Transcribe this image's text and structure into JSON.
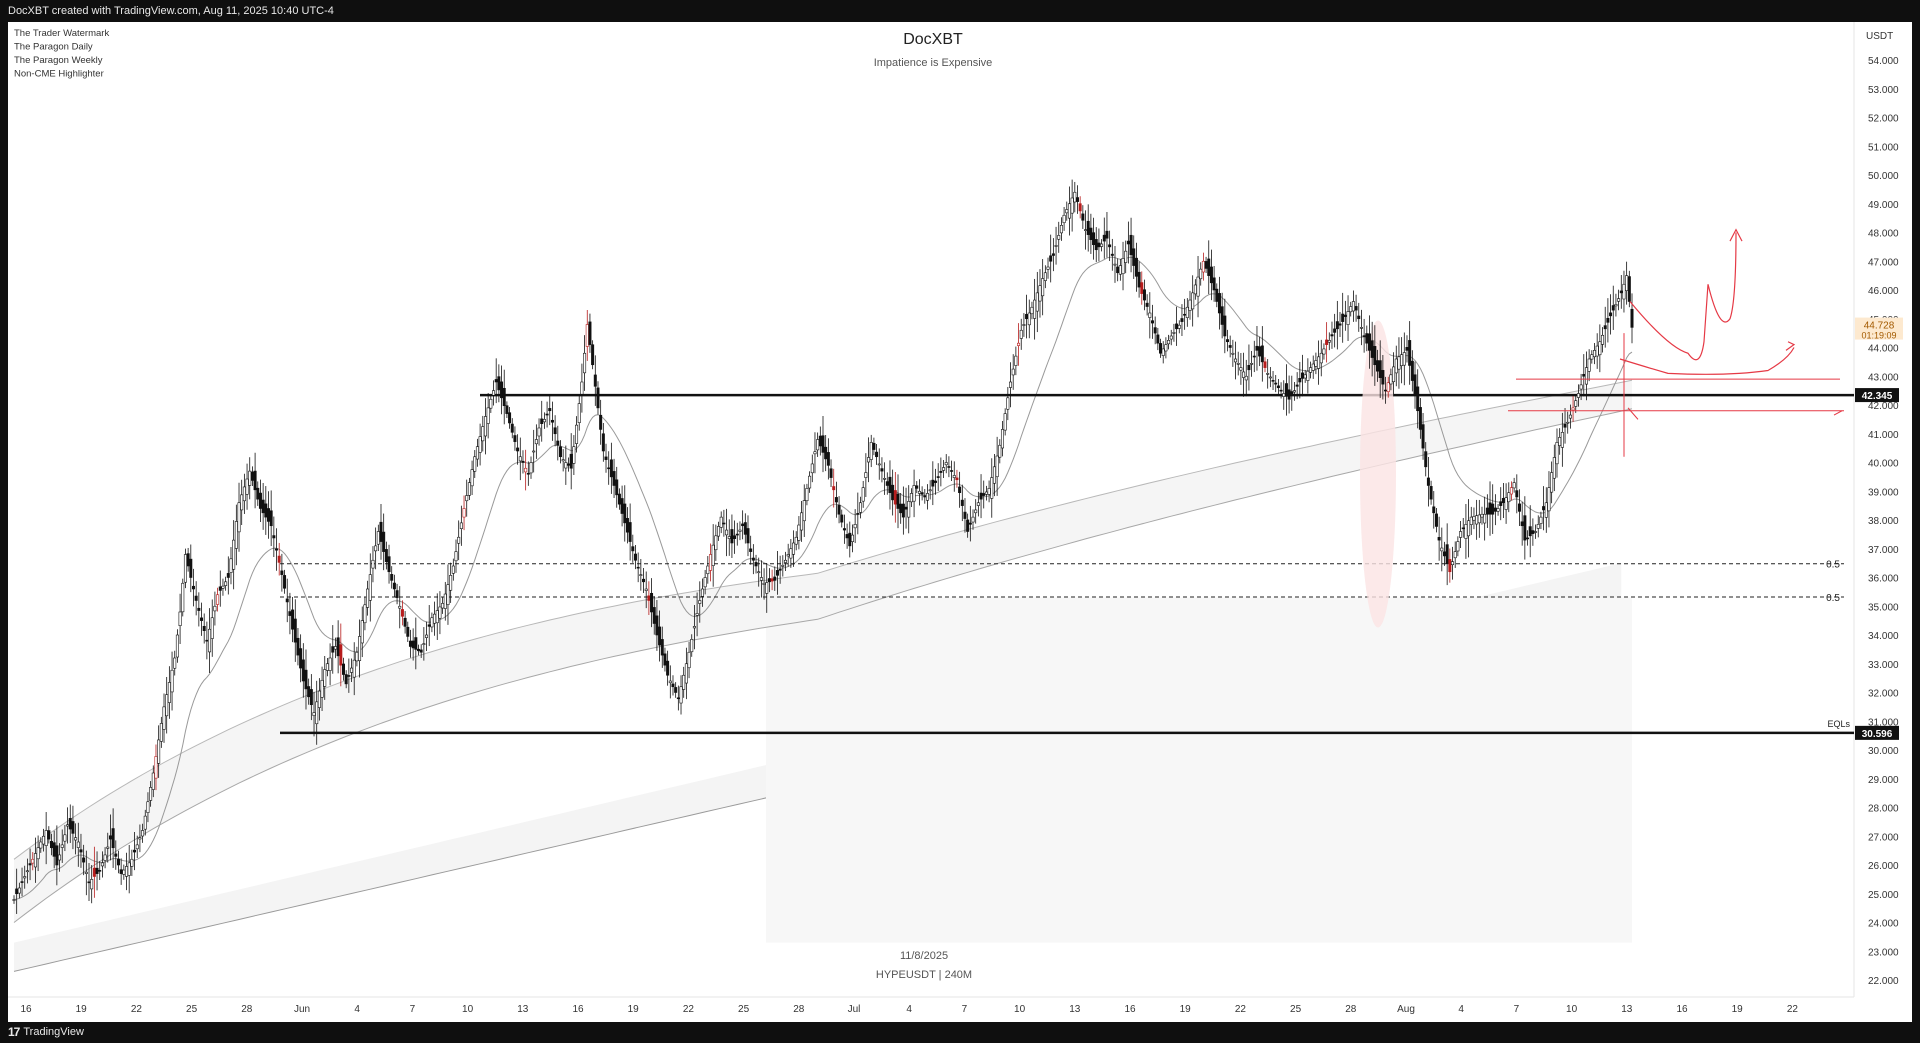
{
  "header": {
    "credit": "DocXBT created with TradingView.com, Aug 11, 2025 10:40 UTC-4"
  },
  "footer": {
    "brand": "TradingView",
    "logo_glyph": "17"
  },
  "indicators": [
    "The Trader Watermark",
    "The Paragon Daily",
    "The Paragon Weekly",
    "Non-CME Highlighter"
  ],
  "chart_data": {
    "type": "candlestick",
    "title": "DocXBT",
    "subtitle": "Impatience is Expensive",
    "symbol_date": "11/8/2025",
    "symbol_label": "HYPEUSDT | 240M",
    "currency": "USDT",
    "price_axis": {
      "min": 22,
      "max": 54,
      "step": 1
    },
    "y_ticks": [
      "54.000",
      "53.000",
      "52.000",
      "51.000",
      "50.000",
      "49.000",
      "48.000",
      "47.000",
      "46.000",
      "45.000",
      "44.000",
      "43.000",
      "42.000",
      "41.000",
      "40.000",
      "39.000",
      "38.000",
      "37.000",
      "36.000",
      "35.000",
      "34.000",
      "33.000",
      "32.000",
      "31.000",
      "30.000",
      "29.000",
      "28.000",
      "27.000",
      "26.000",
      "25.000",
      "24.000",
      "23.000",
      "22.000"
    ],
    "x_ticks": [
      "16",
      "19",
      "22",
      "25",
      "28",
      "Jun",
      "4",
      "7",
      "10",
      "13",
      "16",
      "19",
      "22",
      "25",
      "28",
      "Jul",
      "4",
      "7",
      "10",
      "13",
      "16",
      "19",
      "22",
      "25",
      "28",
      "Aug",
      "4",
      "7",
      "10",
      "13",
      "16",
      "19",
      "22"
    ],
    "current_price": {
      "value": "44.728",
      "countdown": "01:19:09",
      "y": 44.728
    },
    "levels": [
      {
        "label": "42.345",
        "y": 42.345,
        "style": "solid"
      },
      {
        "label": "30.596",
        "y": 30.596,
        "style": "solid",
        "annotation": "EQLs"
      },
      {
        "label": "0.5",
        "y": 36.48,
        "style": "dashed"
      },
      {
        "label": "0.5",
        "y": 35.32,
        "style": "dashed"
      }
    ],
    "price_path": [
      [
        0,
        24.8
      ],
      [
        2,
        25.6
      ],
      [
        4,
        26.4
      ],
      [
        6,
        27.2
      ],
      [
        8,
        26.0
      ],
      [
        10,
        27.4
      ],
      [
        12,
        26.8
      ],
      [
        14,
        25.4
      ],
      [
        16,
        25.8
      ],
      [
        18,
        26.9
      ],
      [
        20,
        25.7
      ],
      [
        22,
        26.2
      ],
      [
        24,
        27.2
      ],
      [
        26,
        29.2
      ],
      [
        28,
        31.5
      ],
      [
        30,
        33.2
      ],
      [
        31,
        34.8
      ],
      [
        32,
        36.8
      ],
      [
        34,
        35.2
      ],
      [
        36,
        33.8
      ],
      [
        38,
        35.4
      ],
      [
        40,
        36.0
      ],
      [
        42,
        38.6
      ],
      [
        44,
        39.7
      ],
      [
        46,
        38.4
      ],
      [
        48,
        37.8
      ],
      [
        50,
        36.1
      ],
      [
        52,
        34.2
      ],
      [
        54,
        32.4
      ],
      [
        56,
        31.3
      ],
      [
        58,
        32.8
      ],
      [
        60,
        33.6
      ],
      [
        62,
        32.3
      ],
      [
        64,
        33.4
      ],
      [
        66,
        35.6
      ],
      [
        68,
        37.6
      ],
      [
        70,
        36.2
      ],
      [
        72,
        35.0
      ],
      [
        74,
        33.6
      ],
      [
        76,
        33.4
      ],
      [
        78,
        34.6
      ],
      [
        80,
        35.1
      ],
      [
        82,
        36.4
      ],
      [
        84,
        38.4
      ],
      [
        86,
        40.2
      ],
      [
        88,
        41.6
      ],
      [
        90,
        42.8
      ],
      [
        92,
        41.7
      ],
      [
        94,
        40.4
      ],
      [
        96,
        39.6
      ],
      [
        98,
        41.2
      ],
      [
        100,
        41.8
      ],
      [
        102,
        40.2
      ],
      [
        104,
        39.8
      ],
      [
        106,
        42.8
      ],
      [
        107,
        44.8
      ],
      [
        108,
        43.4
      ],
      [
        110,
        40.4
      ],
      [
        112,
        39.2
      ],
      [
        114,
        37.9
      ],
      [
        116,
        36.6
      ],
      [
        118,
        35.6
      ],
      [
        120,
        34.0
      ],
      [
        122,
        32.6
      ],
      [
        124,
        31.8
      ],
      [
        126,
        33.4
      ],
      [
        128,
        35.2
      ],
      [
        130,
        36.8
      ],
      [
        132,
        38.1
      ],
      [
        134,
        37.2
      ],
      [
        136,
        37.8
      ],
      [
        138,
        36.6
      ],
      [
        140,
        35.8
      ],
      [
        142,
        35.9
      ],
      [
        144,
        36.6
      ],
      [
        146,
        37.4
      ],
      [
        148,
        39.1
      ],
      [
        150,
        40.8
      ],
      [
        152,
        39.9
      ],
      [
        154,
        38.2
      ],
      [
        156,
        37.1
      ],
      [
        158,
        38.6
      ],
      [
        160,
        40.7
      ],
      [
        162,
        39.7
      ],
      [
        164,
        38.7
      ],
      [
        166,
        38.1
      ],
      [
        168,
        39.2
      ],
      [
        170,
        38.8
      ],
      [
        172,
        39.3
      ],
      [
        174,
        40.0
      ],
      [
        176,
        39.4
      ],
      [
        178,
        37.6
      ],
      [
        180,
        38.6
      ],
      [
        182,
        39.1
      ],
      [
        184,
        40.6
      ],
      [
        186,
        42.8
      ],
      [
        188,
        44.6
      ],
      [
        190,
        45.4
      ],
      [
        192,
        46.4
      ],
      [
        194,
        47.2
      ],
      [
        196,
        48.6
      ],
      [
        198,
        49.4
      ],
      [
        200,
        48.1
      ],
      [
        202,
        47.4
      ],
      [
        204,
        47.8
      ],
      [
        206,
        46.6
      ],
      [
        208,
        47.6
      ],
      [
        210,
        46.1
      ],
      [
        212,
        45.2
      ],
      [
        214,
        43.8
      ],
      [
        216,
        44.4
      ],
      [
        218,
        44.9
      ],
      [
        220,
        45.9
      ],
      [
        222,
        47.0
      ],
      [
        224,
        46.0
      ],
      [
        226,
        44.4
      ],
      [
        228,
        43.6
      ],
      [
        230,
        43.0
      ],
      [
        232,
        43.9
      ],
      [
        234,
        43.1
      ],
      [
        236,
        42.6
      ],
      [
        238,
        42.2
      ],
      [
        240,
        42.8
      ],
      [
        242,
        43.3
      ],
      [
        244,
        43.8
      ],
      [
        246,
        44.4
      ],
      [
        248,
        44.9
      ],
      [
        250,
        45.6
      ],
      [
        252,
        44.4
      ],
      [
        254,
        43.4
      ],
      [
        256,
        42.5
      ],
      [
        258,
        43.6
      ],
      [
        260,
        43.9
      ],
      [
        262,
        41.8
      ],
      [
        264,
        39.2
      ],
      [
        266,
        37.3
      ],
      [
        268,
        36.2
      ],
      [
        270,
        37.6
      ],
      [
        272,
        38.1
      ],
      [
        274,
        38.2
      ],
      [
        276,
        38.2
      ],
      [
        278,
        38.6
      ],
      [
        280,
        39.3
      ],
      [
        282,
        37.3
      ],
      [
        284,
        37.6
      ],
      [
        286,
        38.6
      ],
      [
        288,
        40.7
      ],
      [
        290,
        41.4
      ],
      [
        292,
        42.4
      ],
      [
        294,
        43.6
      ],
      [
        296,
        44.2
      ],
      [
        298,
        45.1
      ],
      [
        300,
        45.9
      ],
      [
        301,
        46.5
      ],
      [
        302,
        44.7
      ]
    ],
    "date_at_index": {
      "0": "16",
      "300": "10"
    },
    "hint_text": "Red arrow projections after the current bar."
  }
}
